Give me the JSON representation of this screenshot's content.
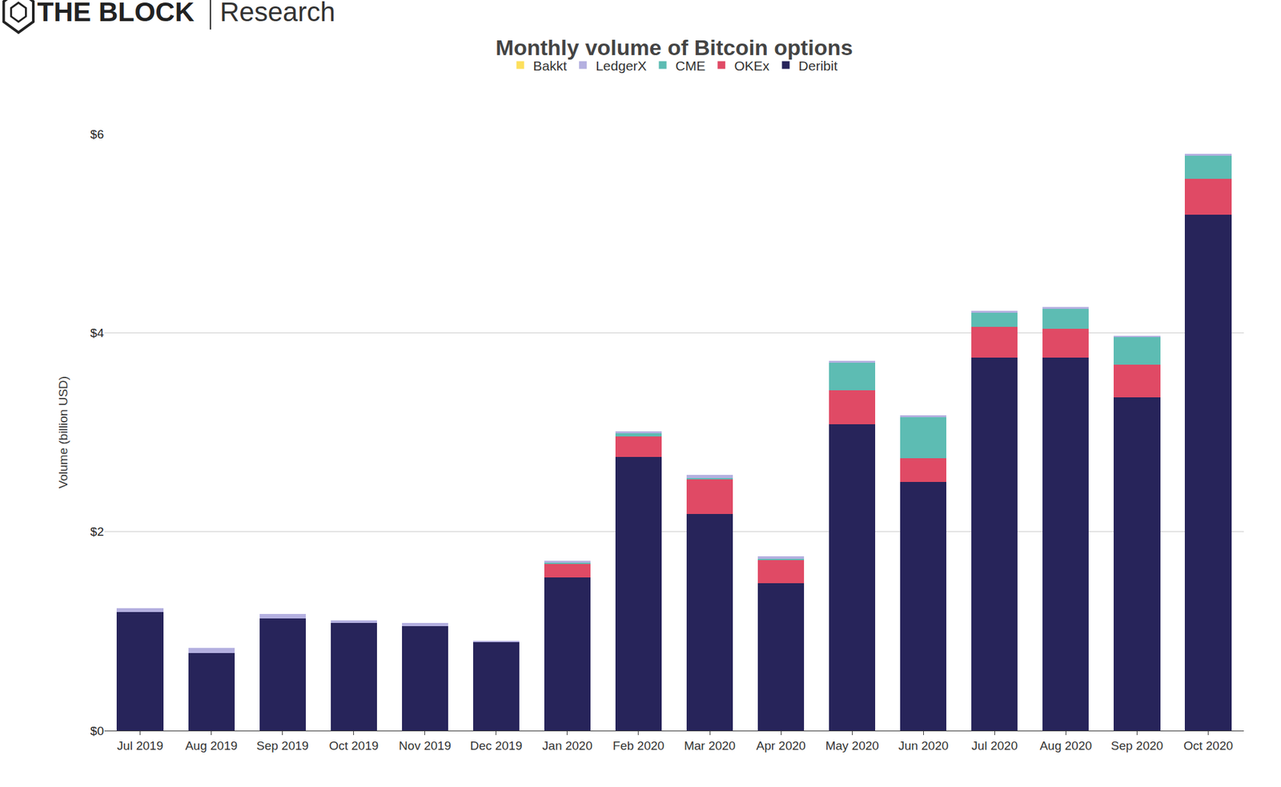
{
  "chart_data": {
    "type": "bar",
    "title": "Monthly volume of Bitcoin options",
    "annotations": [
      "THE BLOCK",
      "Research"
    ],
    "y_label": "Volume (billion USD)",
    "categories": [
      "Jul 2019",
      "Aug 2019",
      "Sep 2019",
      "Oct 2019",
      "Nov 2019",
      "Dec 2019",
      "Jan 2020",
      "Feb 2020",
      "Mar 2020",
      "Apr 2020",
      "May 2020",
      "Jun 2020",
      "Jul 2020",
      "Aug 2020",
      "Sep 2020",
      "Oct 2020"
    ],
    "series": [
      {
        "name": "Deribit",
        "color": "#27245a",
        "values": [
          1.19,
          0.78,
          1.13,
          1.08,
          1.05,
          0.89,
          1.54,
          2.75,
          2.18,
          1.48,
          3.08,
          2.5,
          3.75,
          3.75,
          3.35,
          5.19
        ]
      },
      {
        "name": "OKEx",
        "color": "#e04a65",
        "values": [
          0,
          0,
          0,
          0,
          0,
          0,
          0.14,
          0.21,
          0.35,
          0.24,
          0.34,
          0.24,
          0.31,
          0.29,
          0.33,
          0.36
        ]
      },
      {
        "name": "CME",
        "color": "#5dbcb3",
        "values": [
          0,
          0,
          0,
          0,
          0,
          0,
          0.01,
          0.03,
          0.01,
          0.01,
          0.28,
          0.41,
          0.14,
          0.2,
          0.28,
          0.23
        ]
      },
      {
        "name": "LedgerX",
        "color": "#b4b0e0",
        "values": [
          0.04,
          0.05,
          0.04,
          0.03,
          0.03,
          0.01,
          0.02,
          0.02,
          0.03,
          0.02,
          0.02,
          0.02,
          0.02,
          0.02,
          0.01,
          0.02
        ]
      },
      {
        "name": "Bakkt",
        "color": "#fde05c",
        "values": [
          0,
          0,
          0,
          0,
          0,
          0,
          0,
          0,
          0,
          0,
          0,
          0,
          0,
          0,
          0,
          0
        ]
      }
    ],
    "stacked": true,
    "legend": "top",
    "grid": true,
    "ylim": [
      0,
      6
    ],
    "yticks": [
      {
        "value": 0,
        "label": "$0"
      },
      {
        "value": 2,
        "label": "$2"
      },
      {
        "value": 4,
        "label": "$4"
      },
      {
        "value": 6,
        "label": "$6"
      }
    ]
  }
}
